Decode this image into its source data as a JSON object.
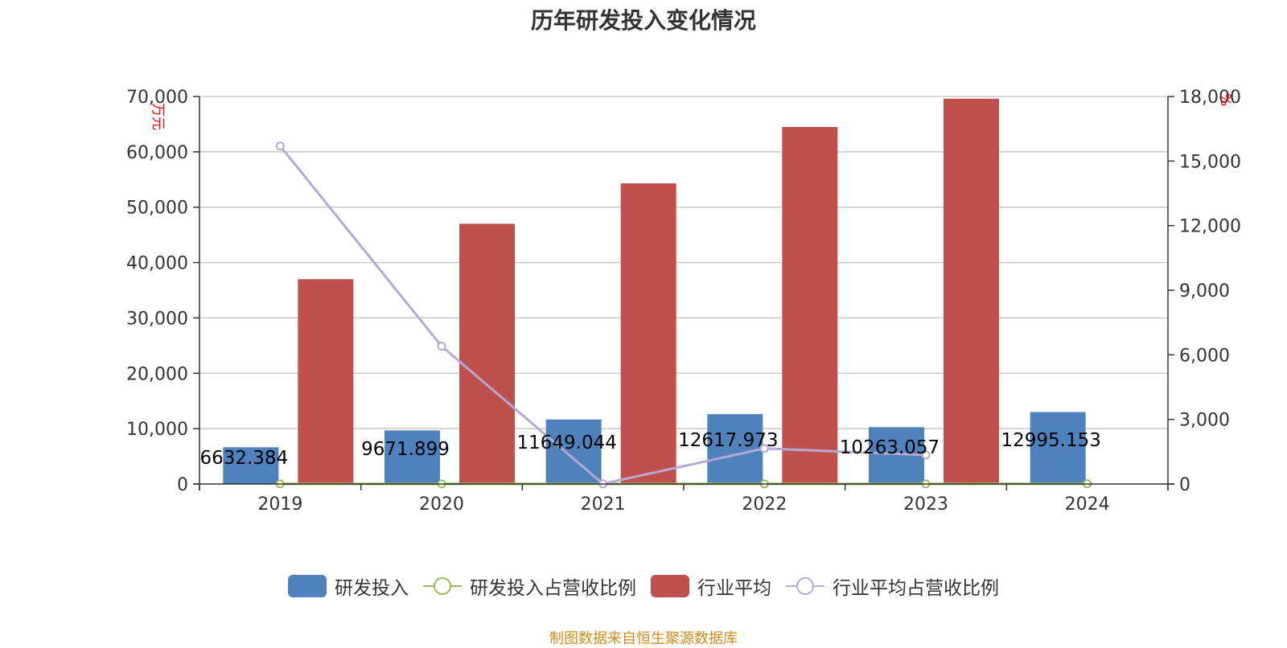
{
  "title": "历年研发投入变化情况",
  "source": "制图数据来自恒生聚源数据库",
  "chart_data": {
    "type": "bar",
    "categories": [
      "2019",
      "2020",
      "2021",
      "2022",
      "2023",
      "2024"
    ],
    "left_axis": {
      "unit": "万元",
      "ylim": [
        0,
        70000
      ],
      "ticks": [
        "0",
        "10,000",
        "20,000",
        "30,000",
        "40,000",
        "50,000",
        "60,000",
        "70,000"
      ]
    },
    "right_axis": {
      "unit": "%",
      "ylim": [
        0,
        18000
      ],
      "ticks": [
        "0",
        "3,000",
        "6,000",
        "9,000",
        "12,000",
        "15,000",
        "18,000"
      ]
    },
    "series": [
      {
        "name": "研发投入",
        "type": "bar",
        "axis": "left",
        "color": "#4f81bd",
        "values": [
          6632.384,
          9671.899,
          11649.044,
          12617.973,
          10263.057,
          12995.153
        ],
        "labels": [
          "6632.384",
          "9671.899",
          "11649.044",
          "12617.973",
          "10263.057",
          "12995.153"
        ]
      },
      {
        "name": "研发投入占营收比例",
        "type": "line",
        "axis": "right",
        "color": "#9bbb59",
        "values": [
          5,
          5,
          6,
          7,
          6,
          8
        ]
      },
      {
        "name": "行业平均",
        "type": "bar",
        "axis": "left",
        "color": "#c0504d",
        "values": [
          37000,
          47000,
          54300,
          64500,
          69600,
          null
        ]
      },
      {
        "name": "行业平均占营收比例",
        "type": "line",
        "axis": "right",
        "color": "#b3a9d3",
        "values": [
          15700,
          6400,
          10,
          1650,
          1350,
          null
        ]
      }
    ],
    "grid": true,
    "legend": "bottom"
  }
}
